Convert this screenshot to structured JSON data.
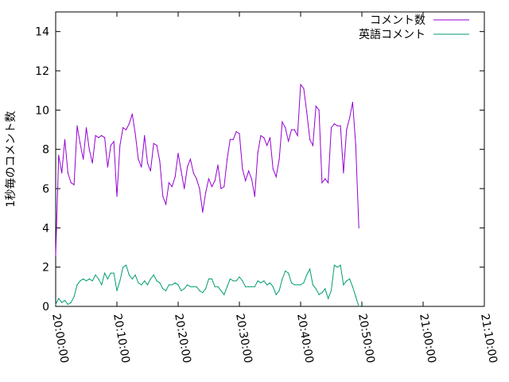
{
  "chart_data": {
    "type": "line",
    "title": "",
    "xlabel": "",
    "ylabel": "1秒毎のコメント数",
    "ylim": [
      0,
      15
    ],
    "xlim": [
      "20:00:00",
      "21:10:00"
    ],
    "grid": false,
    "legend_position": "top-right",
    "x_ticks": [
      "20:00:00",
      "20:10:00",
      "20:20:00",
      "20:30:00",
      "20:40:00",
      "20:50:00",
      "21:00:00",
      "21:10:00"
    ],
    "y_ticks": [
      "0",
      "2",
      "4",
      "6",
      "8",
      "10",
      "12",
      "14"
    ],
    "series": [
      {
        "name": "コメント数",
        "color": "#9400d3",
        "points": [
          [
            "20:00:00",
            2.6
          ],
          [
            "20:00:30",
            7.7
          ],
          [
            "20:01:00",
            6.8
          ],
          [
            "20:01:30",
            8.5
          ],
          [
            "20:02:00",
            6.8
          ],
          [
            "20:02:30",
            6.3
          ],
          [
            "20:03:00",
            6.2
          ],
          [
            "20:03:30",
            9.2
          ],
          [
            "20:04:00",
            8.3
          ],
          [
            "20:04:30",
            7.5
          ],
          [
            "20:05:00",
            9.1
          ],
          [
            "20:05:30",
            8.0
          ],
          [
            "20:06:00",
            7.3
          ],
          [
            "20:06:30",
            8.7
          ],
          [
            "20:07:00",
            8.6
          ],
          [
            "20:07:30",
            8.7
          ],
          [
            "20:08:00",
            8.6
          ],
          [
            "20:08:30",
            7.1
          ],
          [
            "20:09:00",
            8.2
          ],
          [
            "20:09:30",
            8.4
          ],
          [
            "20:10:00",
            5.6
          ],
          [
            "20:10:30",
            8.2
          ],
          [
            "20:11:00",
            9.1
          ],
          [
            "20:11:30",
            9.0
          ],
          [
            "20:12:00",
            9.3
          ],
          [
            "20:12:30",
            9.8
          ],
          [
            "20:13:00",
            8.8
          ],
          [
            "20:13:30",
            7.5
          ],
          [
            "20:14:00",
            7.1
          ],
          [
            "20:14:30",
            8.7
          ],
          [
            "20:15:00",
            7.3
          ],
          [
            "20:15:30",
            6.9
          ],
          [
            "20:16:00",
            8.3
          ],
          [
            "20:16:30",
            8.2
          ],
          [
            "20:17:00",
            7.4
          ],
          [
            "20:17:30",
            5.6
          ],
          [
            "20:18:00",
            5.2
          ],
          [
            "20:18:30",
            6.3
          ],
          [
            "20:19:00",
            6.1
          ],
          [
            "20:19:30",
            6.6
          ],
          [
            "20:20:00",
            7.8
          ],
          [
            "20:20:30",
            6.9
          ],
          [
            "20:21:00",
            6.0
          ],
          [
            "20:21:30",
            7.1
          ],
          [
            "20:22:00",
            7.5
          ],
          [
            "20:22:30",
            6.8
          ],
          [
            "20:23:00",
            6.5
          ],
          [
            "20:23:30",
            6.0
          ],
          [
            "20:24:00",
            4.8
          ],
          [
            "20:24:30",
            5.8
          ],
          [
            "20:25:00",
            6.5
          ],
          [
            "20:25:30",
            6.1
          ],
          [
            "20:26:00",
            6.4
          ],
          [
            "20:26:30",
            7.2
          ],
          [
            "20:27:00",
            6.0
          ],
          [
            "20:27:30",
            6.1
          ],
          [
            "20:28:00",
            7.5
          ],
          [
            "20:28:30",
            8.5
          ],
          [
            "20:29:00",
            8.5
          ],
          [
            "20:29:30",
            8.9
          ],
          [
            "20:30:00",
            8.8
          ],
          [
            "20:30:30",
            7.0
          ],
          [
            "20:31:00",
            6.4
          ],
          [
            "20:31:30",
            6.9
          ],
          [
            "20:32:00",
            6.5
          ],
          [
            "20:32:30",
            5.6
          ],
          [
            "20:33:00",
            7.8
          ],
          [
            "20:33:30",
            8.7
          ],
          [
            "20:34:00",
            8.6
          ],
          [
            "20:34:30",
            8.2
          ],
          [
            "20:35:00",
            8.6
          ],
          [
            "20:35:30",
            7.0
          ],
          [
            "20:36:00",
            6.6
          ],
          [
            "20:36:30",
            7.5
          ],
          [
            "20:37:00",
            9.4
          ],
          [
            "20:37:30",
            9.1
          ],
          [
            "20:38:00",
            8.4
          ],
          [
            "20:38:30",
            9.0
          ],
          [
            "20:39:00",
            9.0
          ],
          [
            "20:39:30",
            8.7
          ],
          [
            "20:40:00",
            11.3
          ],
          [
            "20:40:30",
            11.1
          ],
          [
            "20:41:00",
            9.9
          ],
          [
            "20:41:30",
            8.5
          ],
          [
            "20:42:00",
            8.2
          ],
          [
            "20:42:30",
            10.2
          ],
          [
            "20:43:00",
            10.0
          ],
          [
            "20:43:30",
            6.3
          ],
          [
            "20:44:00",
            6.5
          ],
          [
            "20:44:30",
            6.3
          ],
          [
            "20:45:00",
            9.1
          ],
          [
            "20:45:30",
            9.3
          ],
          [
            "20:46:00",
            9.2
          ],
          [
            "20:46:30",
            9.2
          ],
          [
            "20:47:00",
            6.8
          ],
          [
            "20:47:30",
            9.0
          ],
          [
            "20:48:00",
            9.6
          ],
          [
            "20:48:30",
            10.4
          ],
          [
            "20:49:00",
            8.2
          ],
          [
            "20:49:30",
            4.0
          ]
        ]
      },
      {
        "name": "英語コメント",
        "color": "#009e73",
        "points": [
          [
            "20:00:00",
            0.1
          ],
          [
            "20:00:30",
            0.4
          ],
          [
            "20:01:00",
            0.2
          ],
          [
            "20:01:30",
            0.3
          ],
          [
            "20:02:00",
            0.1
          ],
          [
            "20:02:30",
            0.2
          ],
          [
            "20:03:00",
            0.5
          ],
          [
            "20:03:30",
            1.1
          ],
          [
            "20:04:00",
            1.3
          ],
          [
            "20:04:30",
            1.4
          ],
          [
            "20:05:00",
            1.3
          ],
          [
            "20:05:30",
            1.4
          ],
          [
            "20:06:00",
            1.3
          ],
          [
            "20:06:30",
            1.6
          ],
          [
            "20:07:00",
            1.4
          ],
          [
            "20:07:30",
            1.1
          ],
          [
            "20:08:00",
            1.7
          ],
          [
            "20:08:30",
            1.4
          ],
          [
            "20:09:00",
            1.7
          ],
          [
            "20:09:30",
            1.7
          ],
          [
            "20:10:00",
            0.8
          ],
          [
            "20:10:30",
            1.3
          ],
          [
            "20:11:00",
            2.0
          ],
          [
            "20:11:30",
            2.1
          ],
          [
            "20:12:00",
            1.6
          ],
          [
            "20:12:30",
            1.4
          ],
          [
            "20:13:00",
            1.6
          ],
          [
            "20:13:30",
            1.2
          ],
          [
            "20:14:00",
            1.1
          ],
          [
            "20:14:30",
            1.3
          ],
          [
            "20:15:00",
            1.1
          ],
          [
            "20:15:30",
            1.4
          ],
          [
            "20:16:00",
            1.6
          ],
          [
            "20:16:30",
            1.3
          ],
          [
            "20:17:00",
            1.2
          ],
          [
            "20:17:30",
            0.9
          ],
          [
            "20:18:00",
            0.8
          ],
          [
            "20:18:30",
            1.1
          ],
          [
            "20:19:00",
            1.1
          ],
          [
            "20:19:30",
            1.2
          ],
          [
            "20:20:00",
            1.1
          ],
          [
            "20:20:30",
            0.8
          ],
          [
            "20:21:00",
            0.9
          ],
          [
            "20:21:30",
            1.1
          ],
          [
            "20:22:00",
            1.0
          ],
          [
            "20:22:30",
            1.0
          ],
          [
            "20:23:00",
            1.0
          ],
          [
            "20:23:30",
            0.8
          ],
          [
            "20:24:00",
            0.7
          ],
          [
            "20:24:30",
            0.9
          ],
          [
            "20:25:00",
            1.4
          ],
          [
            "20:25:30",
            1.4
          ],
          [
            "20:26:00",
            1.0
          ],
          [
            "20:26:30",
            1.0
          ],
          [
            "20:27:00",
            0.8
          ],
          [
            "20:27:30",
            0.6
          ],
          [
            "20:28:00",
            1.0
          ],
          [
            "20:28:30",
            1.4
          ],
          [
            "20:29:00",
            1.3
          ],
          [
            "20:29:30",
            1.3
          ],
          [
            "20:30:00",
            1.5
          ],
          [
            "20:30:30",
            1.3
          ],
          [
            "20:31:00",
            1.0
          ],
          [
            "20:31:30",
            1.0
          ],
          [
            "20:32:00",
            1.0
          ],
          [
            "20:32:30",
            1.0
          ],
          [
            "20:33:00",
            1.3
          ],
          [
            "20:33:30",
            1.2
          ],
          [
            "20:34:00",
            1.3
          ],
          [
            "20:34:30",
            1.1
          ],
          [
            "20:35:00",
            1.2
          ],
          [
            "20:35:30",
            1.0
          ],
          [
            "20:36:00",
            0.6
          ],
          [
            "20:36:30",
            0.8
          ],
          [
            "20:37:00",
            1.4
          ],
          [
            "20:37:30",
            1.8
          ],
          [
            "20:38:00",
            1.7
          ],
          [
            "20:38:30",
            1.2
          ],
          [
            "20:39:00",
            1.1
          ],
          [
            "20:39:30",
            1.1
          ],
          [
            "20:40:00",
            1.1
          ],
          [
            "20:40:30",
            1.2
          ],
          [
            "20:41:00",
            1.6
          ],
          [
            "20:41:30",
            1.9
          ],
          [
            "20:42:00",
            1.1
          ],
          [
            "20:42:30",
            0.9
          ],
          [
            "20:43:00",
            0.6
          ],
          [
            "20:43:30",
            0.7
          ],
          [
            "20:44:00",
            0.9
          ],
          [
            "20:44:30",
            0.4
          ],
          [
            "20:45:00",
            0.8
          ],
          [
            "20:45:30",
            2.1
          ],
          [
            "20:46:00",
            2.0
          ],
          [
            "20:46:30",
            2.1
          ],
          [
            "20:47:00",
            1.1
          ],
          [
            "20:47:30",
            1.3
          ],
          [
            "20:48:00",
            1.4
          ],
          [
            "20:48:30",
            1.0
          ],
          [
            "20:49:00",
            0.5
          ],
          [
            "20:49:30",
            0.0
          ]
        ]
      }
    ]
  }
}
